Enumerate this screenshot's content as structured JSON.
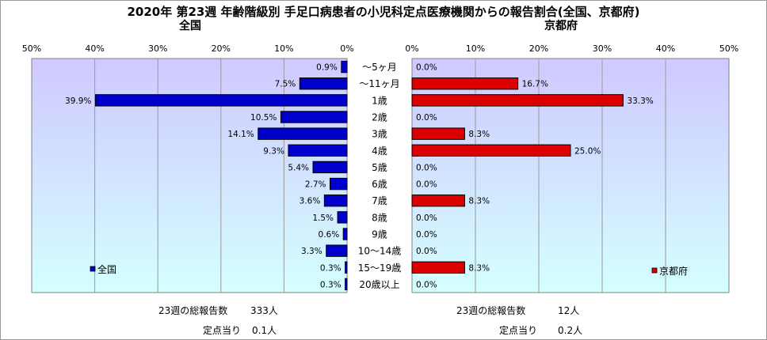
{
  "title": "2020年 第23週 年齢階級別 手足口病患者の小児科定点医療機関からの報告割合(全国、京都府)",
  "chart_data": [
    {
      "type": "bar",
      "orientation": "horizontal",
      "title": "全国",
      "categories": [
        "～5ヶ月",
        "～11ヶ月",
        "1歳",
        "2歳",
        "3歳",
        "4歳",
        "5歳",
        "6歳",
        "7歳",
        "8歳",
        "9歳",
        "10～14歳",
        "15～19歳",
        "20歳以上"
      ],
      "series": [
        {
          "name": "全国",
          "values": [
            0.9,
            7.5,
            39.9,
            10.5,
            14.1,
            9.3,
            5.4,
            2.7,
            3.6,
            1.5,
            0.6,
            3.3,
            0.3,
            0.3
          ]
        }
      ],
      "value_labels": [
        "0.9%",
        "7.5%",
        "39.9%",
        "10.5%",
        "14.1%",
        "9.3%",
        "5.4%",
        "2.7%",
        "3.6%",
        "1.5%",
        "0.6%",
        "3.3%",
        "0.3%",
        "0.3%"
      ],
      "xlim": [
        0,
        50
      ],
      "ticks": [
        "50%",
        "40%",
        "30%",
        "20%",
        "10%",
        "0%"
      ],
      "direction": "right-to-left",
      "color": "#0000cc",
      "legend": "bottom-left",
      "grid": true
    },
    {
      "type": "bar",
      "orientation": "horizontal",
      "title": "京都府",
      "categories": [
        "～5ヶ月",
        "～11ヶ月",
        "1歳",
        "2歳",
        "3歳",
        "4歳",
        "5歳",
        "6歳",
        "7歳",
        "8歳",
        "9歳",
        "10～14歳",
        "15～19歳",
        "20歳以上"
      ],
      "series": [
        {
          "name": "京都府",
          "values": [
            0.0,
            16.7,
            33.3,
            0.0,
            8.3,
            25.0,
            0.0,
            0.0,
            8.3,
            0.0,
            0.0,
            0.0,
            8.3,
            0.0
          ]
        }
      ],
      "value_labels": [
        "0.0%",
        "16.7%",
        "33.3%",
        "0.0%",
        "8.3%",
        "25.0%",
        "0.0%",
        "0.0%",
        "8.3%",
        "0.0%",
        "0.0%",
        "0.0%",
        "8.3%",
        "0.0%"
      ],
      "xlim": [
        0,
        50
      ],
      "ticks": [
        "0%",
        "10%",
        "20%",
        "30%",
        "40%",
        "50%"
      ],
      "direction": "left-to-right",
      "color": "#dd0000",
      "legend": "bottom-right",
      "grid": true
    }
  ],
  "footer": {
    "national": {
      "total_label": "23週の総報告数",
      "total_value": "333人",
      "per_label": "定点当り",
      "per_value": "0.1人"
    },
    "kyoto": {
      "total_label": "23週の総報告数",
      "total_value": "12人",
      "per_label": "定点当り",
      "per_value": "0.2人"
    }
  }
}
